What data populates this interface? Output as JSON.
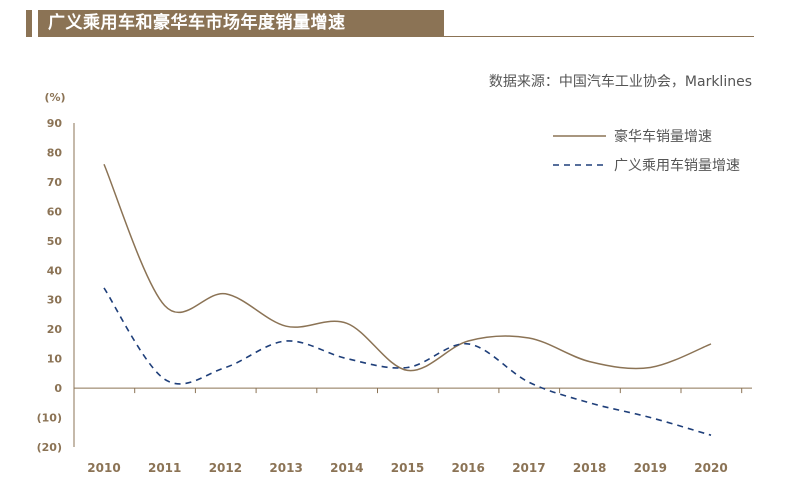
{
  "title": "广义乘用车和豪华车市场年度销量增速",
  "source": "数据来源：中国汽车工业协会，Marklines",
  "colors": {
    "brand": "#8b7355",
    "luxury": "#8b7355",
    "passenger": "#1f3f7a"
  },
  "chart_data": {
    "type": "line",
    "unit_label": "(%)",
    "x": [
      "2010",
      "2011",
      "2012",
      "2013",
      "2014",
      "2015",
      "2016",
      "2017",
      "2018",
      "2019",
      "2020"
    ],
    "ylim": [
      -20,
      90
    ],
    "yticks": [
      90,
      80,
      70,
      60,
      50,
      40,
      30,
      20,
      10,
      0,
      -10,
      -20
    ],
    "ytick_labels": [
      "90",
      "80",
      "70",
      "60",
      "50",
      "40",
      "30",
      "20",
      "10",
      "0",
      "(10)",
      "(20)"
    ],
    "grid": false,
    "legend_position": "top-right",
    "series": [
      {
        "name": "豪华车销量增速",
        "style": "solid",
        "color": "#8b7355",
        "values": [
          76,
          28,
          32,
          21,
          22,
          6,
          16,
          17,
          9,
          7,
          15
        ]
      },
      {
        "name": "广义乘用车销量增速",
        "style": "dashed",
        "color": "#1f3f7a",
        "values": [
          34,
          3,
          7,
          16,
          10,
          7,
          15,
          2,
          -5,
          -10,
          -16
        ]
      }
    ]
  }
}
